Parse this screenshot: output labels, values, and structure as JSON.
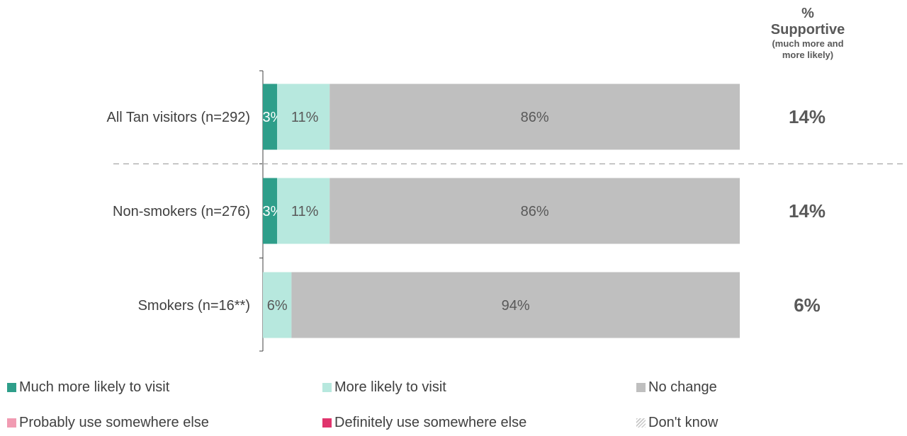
{
  "supportive_header": {
    "symbol": "%",
    "title": "Supportive",
    "subtitle_line1": "(much more and",
    "subtitle_line2": "more likely)"
  },
  "colors": {
    "much_more_likely": "#2e9e8a",
    "more_likely": "#b7e8de",
    "no_change": "#bfbfbf",
    "probably_elsewhere": "#f19bb2",
    "definitely_elsewhere": "#e0356d",
    "dont_know": "#c8c8c8"
  },
  "chart_data": {
    "type": "bar",
    "orientation": "horizontal",
    "stacked": true,
    "percent_scale": [
      0,
      100
    ],
    "categories": [
      "All Tan visitors (n=292)",
      "Non-smokers (n=276)",
      "Smokers (n=16**)"
    ],
    "series": [
      {
        "name": "Much more likely to visit",
        "values": [
          3,
          3,
          0
        ],
        "labels": [
          "3%",
          "3%",
          ""
        ]
      },
      {
        "name": "More likely to visit",
        "values": [
          11,
          11,
          6
        ],
        "labels": [
          "11%",
          "11%",
          "6%"
        ]
      },
      {
        "name": "No change",
        "values": [
          86,
          86,
          94
        ],
        "labels": [
          "86%",
          "86%",
          "94%"
        ]
      },
      {
        "name": "Probably use somewhere else",
        "values": [
          0,
          0,
          0
        ],
        "labels": [
          "",
          "",
          ""
        ]
      },
      {
        "name": "Definitely use somewhere else",
        "values": [
          0,
          0,
          0
        ],
        "labels": [
          "",
          "",
          ""
        ]
      },
      {
        "name": "Don't know",
        "values": [
          0,
          0,
          0
        ],
        "labels": [
          "",
          "",
          ""
        ]
      }
    ],
    "supportive": [
      "14%",
      "14%",
      "6%"
    ],
    "legend_position": "bottom",
    "separator_after_category": 0
  },
  "legend": [
    {
      "label": "Much more likely to visit",
      "color": "#2e9e8a"
    },
    {
      "label": "More likely to visit",
      "color": "#b7e8de"
    },
    {
      "label": "No change",
      "color": "#bfbfbf"
    },
    {
      "label": "Probably use somewhere else",
      "color": "#f19bb2"
    },
    {
      "label": "Definitely use somewhere else",
      "color": "#e0356d"
    },
    {
      "label": "Don't know",
      "color": "hatch"
    }
  ]
}
